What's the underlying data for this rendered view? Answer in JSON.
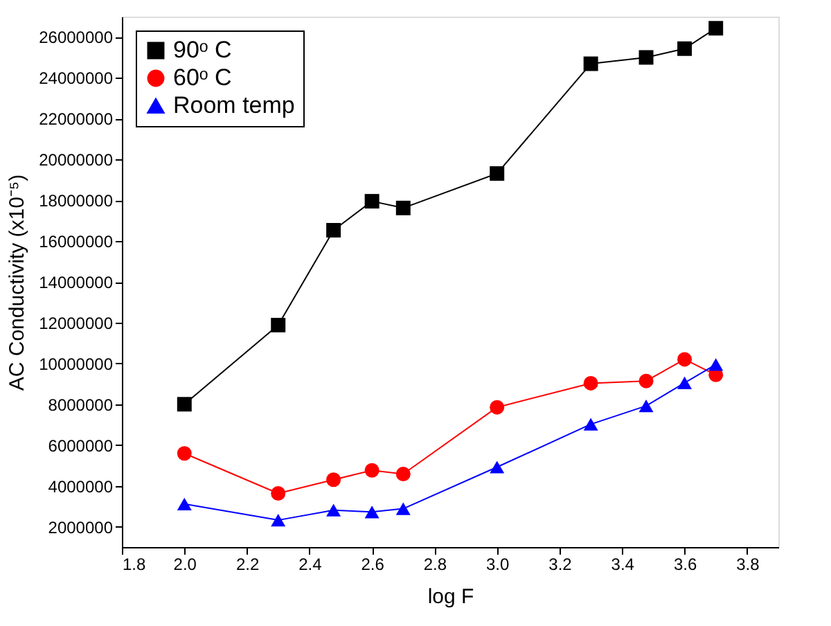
{
  "chart_data": {
    "type": "line",
    "xlabel": "log F",
    "ylabel": "AC Conductivity (x10⁻⁵)",
    "x": [
      2.0,
      2.3,
      2.477,
      2.6,
      2.7,
      3.0,
      3.3,
      3.477,
      3.6,
      3.7
    ],
    "series": [
      {
        "name": "90ᵒ C",
        "color": "#000000",
        "marker": "square",
        "values": [
          8000000,
          11880000,
          16530000,
          17950000,
          17620000,
          19310000,
          24690000,
          25000000,
          25430000,
          26430000
        ]
      },
      {
        "name": "60ᵒ C",
        "color": "#ff0000",
        "marker": "circle",
        "values": [
          5590000,
          3630000,
          4300000,
          4760000,
          4580000,
          7850000,
          9030000,
          9140000,
          10200000,
          9440000
        ]
      },
      {
        "name": "Room temp",
        "color": "#0000ff",
        "marker": "triangle",
        "values": [
          3110000,
          2320000,
          2810000,
          2720000,
          2880000,
          4920000,
          7020000,
          7920000,
          9050000,
          9950000
        ]
      }
    ],
    "xlim": [
      1.8,
      3.9
    ],
    "xticks": [
      1.8,
      {
        "value": 2,
        "label": "2.0"
      },
      2.2,
      2.4,
      2.6,
      2.8,
      {
        "value": 3,
        "label": "3.0"
      },
      3.2,
      3.4,
      3.6,
      3.8
    ],
    "ylim": [
      1000000,
      27000000
    ],
    "yticks": [
      2000000,
      4000000,
      6000000,
      8000000,
      10000000,
      12000000,
      14000000,
      16000000,
      18000000,
      20000000,
      22000000,
      24000000,
      26000000
    ],
    "legend": "top left",
    "grid": false,
    "line_style": "solid"
  }
}
